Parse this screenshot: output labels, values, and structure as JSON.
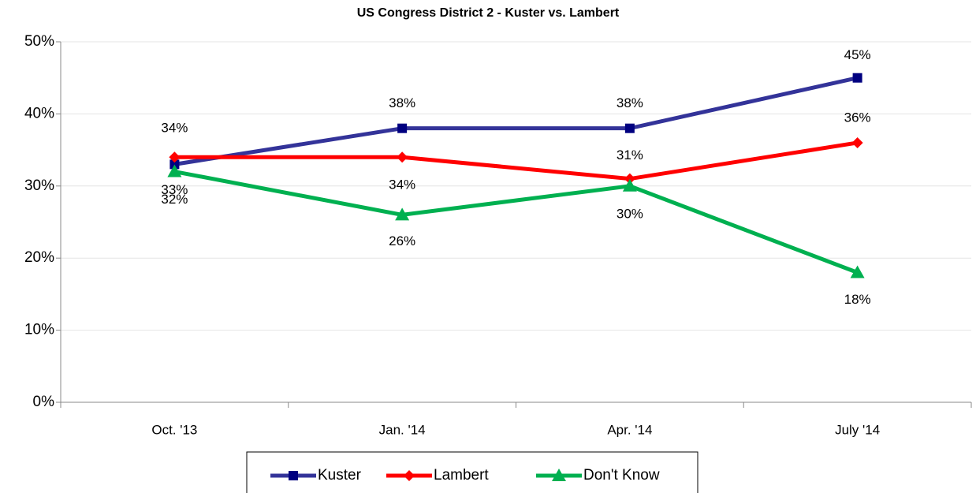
{
  "chart_data": {
    "type": "line",
    "title": "US Congress District 2 - Kuster vs. Lambert",
    "categories": [
      "Oct. '13",
      "Jan. '14",
      "Apr. '14",
      "July '14"
    ],
    "series": [
      {
        "name": "Kuster",
        "color": "#333399",
        "marker": "square",
        "values": [
          33,
          38,
          38,
          45
        ],
        "value_labels": [
          "33%",
          "38%",
          "38%",
          "45%"
        ]
      },
      {
        "name": "Lambert",
        "color": "#ff0000",
        "marker": "diamond",
        "values": [
          34,
          34,
          31,
          36
        ],
        "value_labels": [
          "34%",
          "34%",
          "31%",
          "36%"
        ]
      },
      {
        "name": "Don't Know",
        "color": "#00b050",
        "marker": "triangle",
        "values": [
          32,
          26,
          30,
          18
        ],
        "value_labels": [
          "32%",
          "26%",
          "30%",
          "18%"
        ]
      }
    ],
    "ylim": [
      0,
      50
    ],
    "yticks": [
      {
        "value": 0,
        "label": "0%"
      },
      {
        "value": 10,
        "label": "10%"
      },
      {
        "value": 20,
        "label": "20%"
      },
      {
        "value": 30,
        "label": "30%"
      },
      {
        "value": 40,
        "label": "40%"
      },
      {
        "value": 50,
        "label": "50%"
      }
    ],
    "grid": true,
    "legend": "bottom"
  }
}
